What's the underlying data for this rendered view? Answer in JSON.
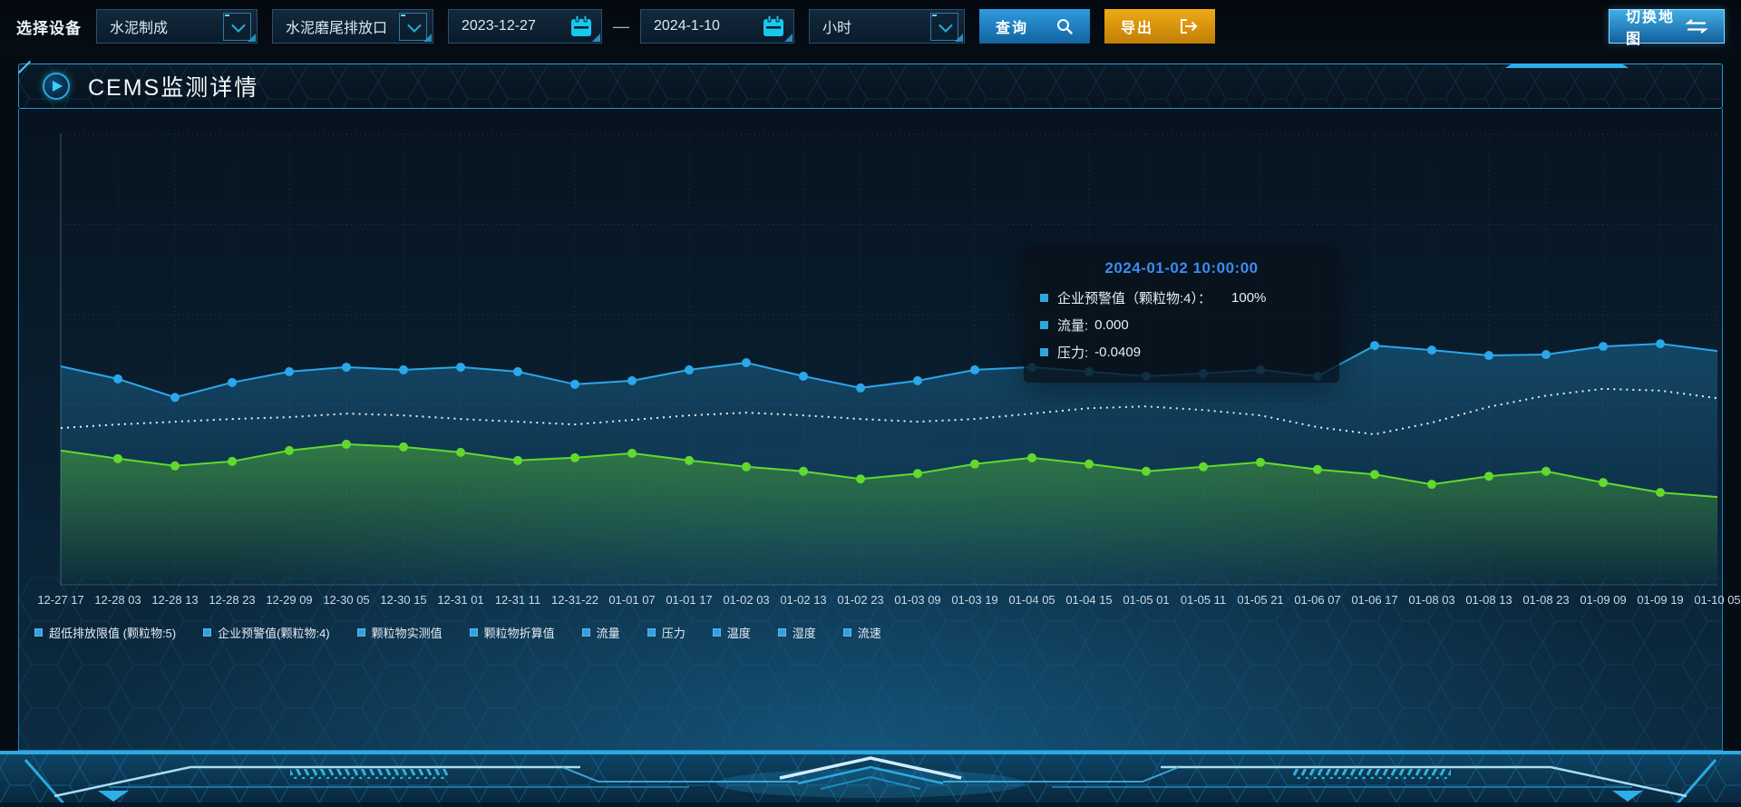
{
  "topbar": {
    "device_label": "选择设备",
    "select_device_group": "水泥制成",
    "select_outlet": "水泥磨尾排放口",
    "date_start": "2023-12-27",
    "date_range_separator": "—",
    "date_end": "2024-1-10",
    "select_interval": "小时",
    "query_button": "查询",
    "export_button": "导出",
    "switch_map_button": "切换地图"
  },
  "panel": {
    "title": "CEMS监测详情"
  },
  "tooltip": {
    "title": "2024-01-02 10:00:00",
    "marker_color": "#2fa7e0",
    "title_color": "#3b8cf0",
    "rows": [
      {
        "label": "企业预警值（颗粒物:4）：",
        "value": "100%"
      },
      {
        "label": "流量:",
        "value": "0.000"
      },
      {
        "label": "压力:",
        "value": "-0.0409"
      }
    ]
  },
  "legend": {
    "marker_color": "#2f9fe0",
    "items": [
      "超低排放限值 (颗粒物:5)",
      "企业预警值(颗粒物:4)",
      "颗粒物实测值",
      "颗粒物折算值",
      "流量",
      "压力",
      "温度",
      "湿度",
      "流速"
    ]
  },
  "chart_data": {
    "type": "line",
    "title": "",
    "xlabel": "",
    "ylabel": "",
    "y_axis_labels": "none visible; series values below are relative height, 0 = plot bottom, 100 = plot top",
    "ylim": [
      0,
      100
    ],
    "grid": "dashed",
    "legend_position": "bottom",
    "x_categories": [
      "12-27 17",
      "12-28 03",
      "12-28 13",
      "12-28 23",
      "12-29 09",
      "12-30 05",
      "12-30 15",
      "12-31 01",
      "12-31 11",
      "12-31-22",
      "01-01 07",
      "01-01 17",
      "01-02 03",
      "01-02 13",
      "01-02 23",
      "01-03 09",
      "01-03 19",
      "01-04 05",
      "01-04 15",
      "01-05 01",
      "01-05 11",
      "01-05 21",
      "01-06 07",
      "01-06 17",
      "01-08 03",
      "01-08 13",
      "01-08 23",
      "01-09 09",
      "01-09 19",
      "01-10 05"
    ],
    "series": [
      {
        "name": "series-blue-line",
        "color": "#2ba7ea",
        "style": "solid line, round dot markers, blue area fill fading downward",
        "dash": false,
        "dots": true,
        "area": true,
        "area_alpha": 0.3,
        "values": [
          48.5,
          45.7,
          41.6,
          44.9,
          47.3,
          48.3,
          47.7,
          48.3,
          47.3,
          44.5,
          45.3,
          47.7,
          49.3,
          46.3,
          43.7,
          45.3,
          47.7,
          48.3,
          47.3,
          46.3,
          46.9,
          47.7,
          46.3,
          53.1,
          52.1,
          50.9,
          51.1,
          52.9,
          53.5,
          51.9
        ]
      },
      {
        "name": "series-white-dotted-line",
        "color": "#e9eff3",
        "style": "dotted line, no markers",
        "dash": true,
        "dots": false,
        "area": false,
        "area_alpha": 0,
        "values": [
          34.8,
          35.6,
          36.2,
          36.8,
          37.2,
          38.0,
          37.6,
          36.8,
          36.2,
          35.6,
          36.6,
          37.6,
          38.2,
          37.6,
          36.8,
          36.2,
          36.8,
          38.0,
          39.2,
          39.6,
          38.8,
          37.6,
          35.0,
          33.4,
          36.0,
          39.5,
          42.0,
          43.5,
          43.1,
          41.4
        ]
      },
      {
        "name": "series-green-line",
        "color": "#62d92e",
        "style": "solid line, round dot markers, green area fill fading downward",
        "dash": false,
        "dots": true,
        "area": true,
        "area_alpha": 0.4,
        "values": [
          29.8,
          28.0,
          26.4,
          27.4,
          29.8,
          31.2,
          30.6,
          29.4,
          27.6,
          28.2,
          29.2,
          27.6,
          26.2,
          25.2,
          23.5,
          24.7,
          26.8,
          28.2,
          26.8,
          25.2,
          26.2,
          27.2,
          25.6,
          24.5,
          22.3,
          24.1,
          25.2,
          22.7,
          20.5,
          19.5
        ]
      }
    ]
  },
  "colors": {
    "accent_cyan": "#2fb6f0",
    "panel_border": "#2596d1",
    "export_orange": "#d99810",
    "calendar_icon": "#17c8f0"
  }
}
